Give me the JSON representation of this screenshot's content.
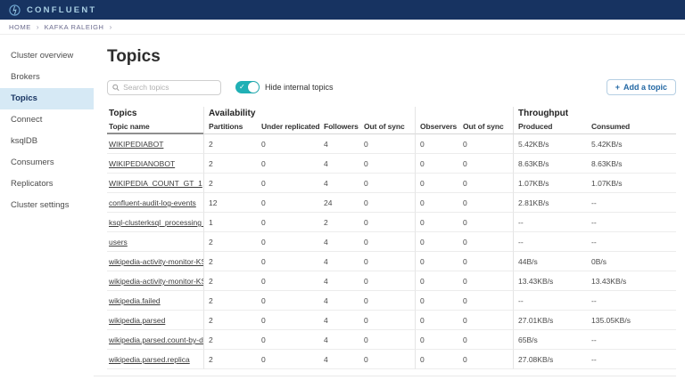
{
  "navbar": {
    "brand": "CONFLUENT"
  },
  "breadcrumb": {
    "items": [
      "HOME",
      "KAFKA RALEIGH"
    ],
    "separator": "›"
  },
  "sidebar": {
    "items": [
      {
        "label": "Cluster overview",
        "active": false
      },
      {
        "label": "Brokers",
        "active": false
      },
      {
        "label": "Topics",
        "active": true
      },
      {
        "label": "Connect",
        "active": false
      },
      {
        "label": "ksqlDB",
        "active": false
      },
      {
        "label": "Consumers",
        "active": false
      },
      {
        "label": "Replicators",
        "active": false
      },
      {
        "label": "Cluster settings",
        "active": false
      }
    ]
  },
  "page": {
    "title": "Topics"
  },
  "controls": {
    "search_placeholder": "Search topics",
    "toggle_label": "Hide internal topics",
    "toggle_on": true,
    "toggle_check": "✓",
    "add_icon": "+",
    "add_label": "Add a topic"
  },
  "table": {
    "groups": {
      "topics": "Topics",
      "availability": "Availability",
      "observers": "",
      "throughput": "Throughput"
    },
    "columns": [
      "Topic name",
      "Partitions",
      "Under replicated",
      "Followers",
      "Out of sync",
      "Observers",
      "Out of sync",
      "Produced",
      "Consumed"
    ],
    "rows": [
      [
        "WIKIPEDIABOT",
        "2",
        "0",
        "4",
        "0",
        "0",
        "0",
        "5.42KB/s",
        "5.42KB/s"
      ],
      [
        "WIKIPEDIANOBOT",
        "2",
        "0",
        "4",
        "0",
        "0",
        "0",
        "8.63KB/s",
        "8.63KB/s"
      ],
      [
        "WIKIPEDIA_COUNT_GT_1",
        "2",
        "0",
        "4",
        "0",
        "0",
        "0",
        "1.07KB/s",
        "1.07KB/s"
      ],
      [
        "confluent-audit-log-events",
        "12",
        "0",
        "24",
        "0",
        "0",
        "0",
        "2.81KB/s",
        "--"
      ],
      [
        "ksql-clusterksql_processing_l...",
        "1",
        "0",
        "2",
        "0",
        "0",
        "0",
        "--",
        "--"
      ],
      [
        "users",
        "2",
        "0",
        "4",
        "0",
        "0",
        "0",
        "--",
        "--"
      ],
      [
        "wikipedia-activity-monitor-KS...",
        "2",
        "0",
        "4",
        "0",
        "0",
        "0",
        "44B/s",
        "0B/s"
      ],
      [
        "wikipedia-activity-monitor-KS...",
        "2",
        "0",
        "4",
        "0",
        "0",
        "0",
        "13.43KB/s",
        "13.43KB/s"
      ],
      [
        "wikipedia.failed",
        "2",
        "0",
        "4",
        "0",
        "0",
        "0",
        "--",
        "--"
      ],
      [
        "wikipedia.parsed",
        "2",
        "0",
        "4",
        "0",
        "0",
        "0",
        "27.01KB/s",
        "135.05KB/s"
      ],
      [
        "wikipedia.parsed.count-by-do...",
        "2",
        "0",
        "4",
        "0",
        "0",
        "0",
        "65B/s",
        "--"
      ],
      [
        "wikipedia.parsed.replica",
        "2",
        "0",
        "4",
        "0",
        "0",
        "0",
        "27.08KB/s",
        "--"
      ]
    ]
  },
  "colors": {
    "navbar_bg": "#173361",
    "brand_text": "#a9cfe3",
    "sidebar_active_bg": "#d6e9f5",
    "sidebar_active_text": "#173361",
    "toggle_on": "#20b0b5",
    "button_blue": "#2468a4"
  }
}
